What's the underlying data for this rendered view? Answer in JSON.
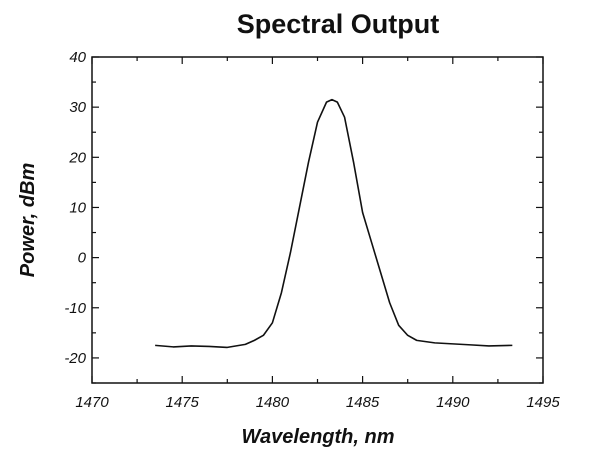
{
  "chart_data": {
    "type": "line",
    "title": "Spectral Output",
    "xlabel": "Wavelength, nm",
    "ylabel": "Power, dBm",
    "xlim": [
      1470,
      1495
    ],
    "ylim": [
      -25,
      40
    ],
    "x_ticks": [
      "1470",
      "1475",
      "1480",
      "1485",
      "1490",
      "1495"
    ],
    "y_ticks": [
      "40",
      "30",
      "20",
      "10",
      "0",
      "-10",
      "-20"
    ],
    "grid": false,
    "legend": "none",
    "series": [
      {
        "color": "#111111",
        "x": [
          1473.5,
          1474.5,
          1475.5,
          1476.5,
          1477.5,
          1478.5,
          1479.0,
          1479.5,
          1480.0,
          1480.5,
          1481.0,
          1481.5,
          1482.0,
          1482.5,
          1483.0,
          1483.3,
          1483.6,
          1484.0,
          1484.5,
          1485.0,
          1485.5,
          1486.0,
          1486.5,
          1487.0,
          1487.5,
          1488.0,
          1489.0,
          1490.0,
          1491.0,
          1492.0,
          1493.3
        ],
        "y": [
          -17.5,
          -17.8,
          -17.6,
          -17.7,
          -17.9,
          -17.3,
          -16.5,
          -15.5,
          -13.0,
          -7.0,
          1.0,
          10.0,
          19.0,
          27.0,
          31.0,
          31.5,
          31.0,
          28.0,
          19.0,
          9.0,
          3.0,
          -3.0,
          -9.0,
          -13.5,
          -15.5,
          -16.5,
          -17.0,
          -17.2,
          -17.4,
          -17.6,
          -17.5
        ]
      }
    ]
  }
}
